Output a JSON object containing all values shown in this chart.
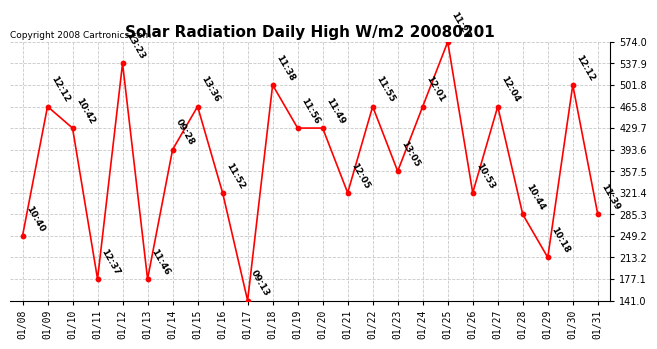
{
  "title": "Solar Radiation Daily High W/m2 20080201",
  "copyright": "Copyright 2008 Cartronics.com",
  "dates": [
    "01/08",
    "01/09",
    "01/10",
    "01/11",
    "01/12",
    "01/13",
    "01/14",
    "01/15",
    "01/16",
    "01/17",
    "01/18",
    "01/19",
    "01/20",
    "01/21",
    "01/22",
    "01/23",
    "01/24",
    "01/25",
    "01/26",
    "01/27",
    "01/28",
    "01/29",
    "01/30",
    "01/31"
  ],
  "values": [
    249.2,
    465.8,
    429.7,
    177.1,
    537.9,
    177.1,
    393.6,
    465.8,
    321.4,
    141.0,
    501.8,
    429.7,
    429.7,
    321.4,
    465.8,
    357.5,
    465.8,
    574.0,
    321.4,
    465.8,
    285.3,
    213.2,
    501.8,
    285.3
  ],
  "labels": [
    "10:40",
    "12:12",
    "10:42",
    "12:37",
    "13:23",
    "11:46",
    "09:28",
    "13:36",
    "11:52",
    "09:13",
    "11:38",
    "11:56",
    "11:49",
    "12:05",
    "11:55",
    "13:05",
    "12:01",
    "11:27",
    "10:53",
    "12:04",
    "10:44",
    "10:18",
    "12:12",
    "11:39"
  ],
  "ylim": [
    141.0,
    574.0
  ],
  "yticks": [
    141.0,
    177.1,
    213.2,
    249.2,
    285.3,
    321.4,
    357.5,
    393.6,
    429.7,
    465.8,
    501.8,
    537.9,
    574.0
  ],
  "line_color": "#ff0000",
  "marker_color": "#ff0000",
  "bg_color": "#ffffff",
  "plot_bg_color": "#ffffff",
  "grid_color": "#c8c8c8",
  "title_fontsize": 11,
  "label_fontsize": 6.5,
  "tick_fontsize": 7,
  "copyright_fontsize": 6.5
}
